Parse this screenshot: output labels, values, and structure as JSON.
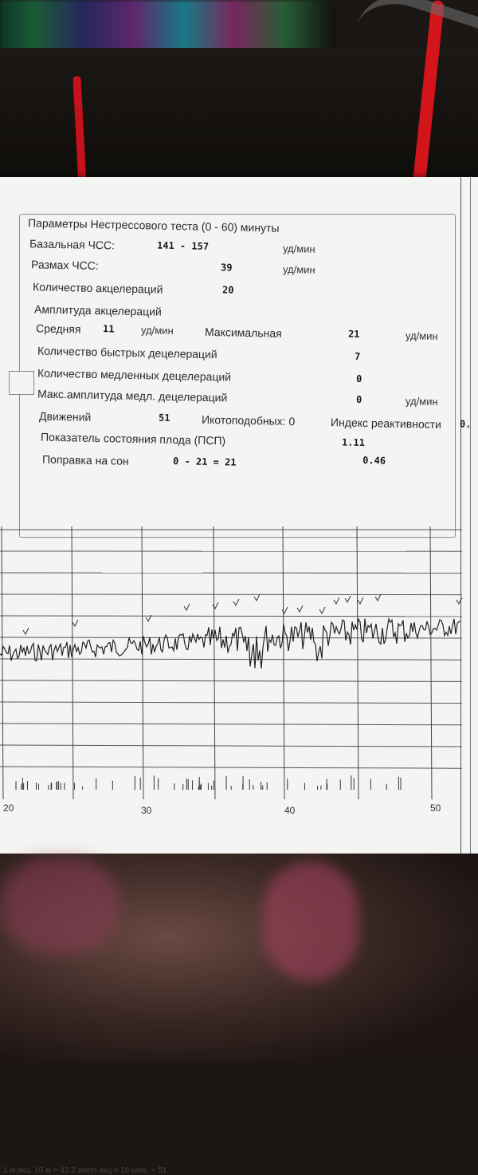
{
  "params": {
    "title": "Параметры Нестрессового теста (0 - 60) минуты",
    "basal_hr": {
      "label": "Базальная ЧСС:",
      "value": "141  -  157",
      "unit": "уд/мин"
    },
    "hr_range": {
      "label": "Размах ЧСС:",
      "value": "39",
      "unit": "уд/мин"
    },
    "accel_count": {
      "label": "Количество акцелераций",
      "value": "20"
    },
    "accel_amp": {
      "label": "Амплитуда акцелераций"
    },
    "mean": {
      "label": "Средняя",
      "value": "11",
      "unit": "уд/мин"
    },
    "max": {
      "label": "Максимальная",
      "value": "21",
      "unit": "уд/мин"
    },
    "fast_decel": {
      "label": "Количество быстрых децелераций",
      "value": "7"
    },
    "slow_decel": {
      "label": "Количество медленных децелераций",
      "value": "0"
    },
    "max_slow_decel_amp": {
      "label": "Макс.амплитуда медл. децелераций",
      "value": "0",
      "unit": "уд/мин"
    },
    "movements": {
      "label": "Движений",
      "value": "51"
    },
    "hiccups": {
      "label": "Икотоподобных: 0"
    },
    "reactivity": {
      "label": "Индекс реактивности",
      "value": "0."
    },
    "fetal_state": {
      "label": "Показатель состояния плода (ПСП)",
      "value": "1.11"
    },
    "sleep_corr": {
      "label": "Поправка на сон",
      "value": "0  -  21  =  21",
      "extra": "0.46"
    }
  },
  "chart_data": {
    "type": "line",
    "x_ticks": [
      "20",
      "30",
      "40",
      "50"
    ],
    "footer": "1 м.акц. 10 м = 43   2 ампл.акц = 16 шев. = 51"
  }
}
